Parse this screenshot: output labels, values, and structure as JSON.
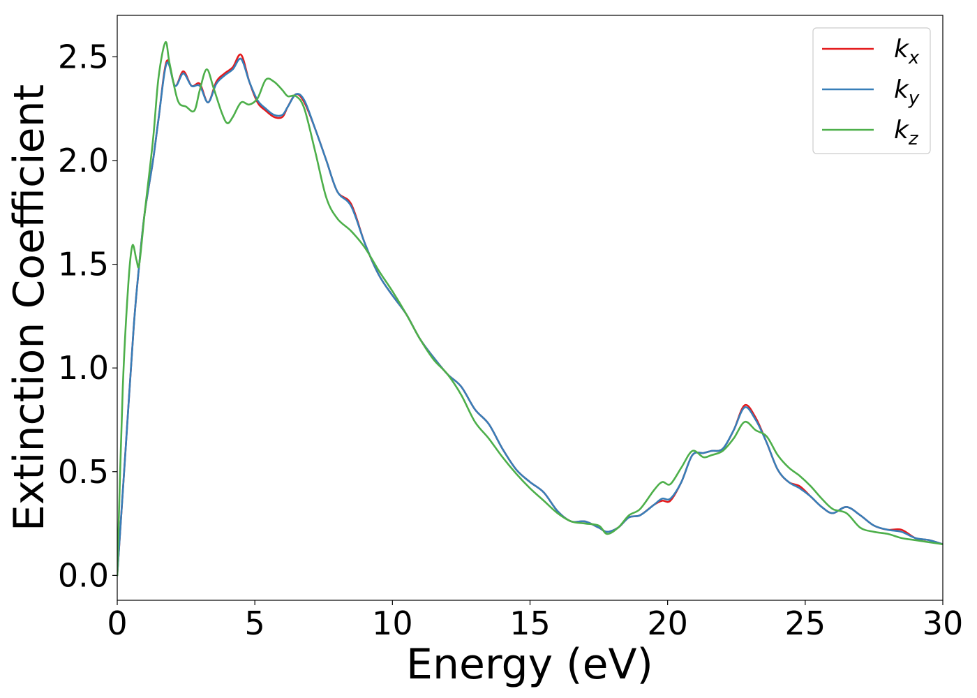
{
  "chart_data": {
    "type": "line",
    "title": "",
    "xlabel": "Energy (eV)",
    "ylabel": "Extinction Coefficient",
    "xlim": [
      0,
      30
    ],
    "ylim": [
      -0.12,
      2.7
    ],
    "xticks": [
      0,
      5,
      10,
      15,
      20,
      25,
      30
    ],
    "xtick_labels": [
      "0",
      "5",
      "10",
      "15",
      "20",
      "25",
      "30"
    ],
    "yticks": [
      0.0,
      0.5,
      1.0,
      1.5,
      2.0,
      2.5
    ],
    "ytick_labels": [
      "0.0",
      "0.5",
      "1.0",
      "1.5",
      "2.0",
      "2.5"
    ],
    "grid": false,
    "legend_position": "top-right",
    "series": [
      {
        "name": "k_x",
        "label_main": "k",
        "label_sub": "x",
        "color": "#e41a1c",
        "x": [
          0,
          0.3,
          0.6,
          0.8,
          1.0,
          1.3,
          1.5,
          1.8,
          2.1,
          2.4,
          2.7,
          3.0,
          3.3,
          3.6,
          3.9,
          4.2,
          4.5,
          4.8,
          5.1,
          5.4,
          5.7,
          6.0,
          6.2,
          6.5,
          6.8,
          7.2,
          7.6,
          8.0,
          8.5,
          9.0,
          9.5,
          10.0,
          10.5,
          11.0,
          11.5,
          12.0,
          12.5,
          13.0,
          13.5,
          14.0,
          14.5,
          15.0,
          15.5,
          16.0,
          16.5,
          17.0,
          17.5,
          17.8,
          18.2,
          18.6,
          19.0,
          19.5,
          19.8,
          20.1,
          20.5,
          20.9,
          21.3,
          21.6,
          22.0,
          22.4,
          22.8,
          23.2,
          23.6,
          24.0,
          24.4,
          24.8,
          25.2,
          25.6,
          26.0,
          26.5,
          27.0,
          27.5,
          28.0,
          28.5,
          29.0,
          29.5,
          30.0
        ],
        "values": [
          0.0,
          0.6,
          1.2,
          1.5,
          1.75,
          2.0,
          2.2,
          2.48,
          2.36,
          2.43,
          2.36,
          2.37,
          2.28,
          2.38,
          2.42,
          2.45,
          2.51,
          2.38,
          2.28,
          2.24,
          2.21,
          2.21,
          2.26,
          2.32,
          2.28,
          2.15,
          2.0,
          1.85,
          1.79,
          1.6,
          1.45,
          1.35,
          1.26,
          1.14,
          1.05,
          0.97,
          0.91,
          0.8,
          0.73,
          0.61,
          0.51,
          0.45,
          0.4,
          0.31,
          0.26,
          0.26,
          0.23,
          0.21,
          0.23,
          0.28,
          0.29,
          0.34,
          0.36,
          0.36,
          0.45,
          0.58,
          0.59,
          0.6,
          0.61,
          0.7,
          0.82,
          0.76,
          0.64,
          0.51,
          0.45,
          0.43,
          0.38,
          0.33,
          0.3,
          0.33,
          0.29,
          0.24,
          0.22,
          0.22,
          0.18,
          0.17,
          0.15
        ]
      },
      {
        "name": "k_y",
        "label_main": "k",
        "label_sub": "y",
        "color": "#377eb8",
        "x": [
          0,
          0.3,
          0.6,
          0.8,
          1.0,
          1.3,
          1.5,
          1.8,
          2.1,
          2.4,
          2.7,
          3.0,
          3.3,
          3.6,
          3.9,
          4.2,
          4.5,
          4.8,
          5.1,
          5.4,
          5.7,
          6.0,
          6.2,
          6.5,
          6.8,
          7.2,
          7.6,
          8.0,
          8.5,
          9.0,
          9.5,
          10.0,
          10.5,
          11.0,
          11.5,
          12.0,
          12.5,
          13.0,
          13.5,
          14.0,
          14.5,
          15.0,
          15.5,
          16.0,
          16.5,
          17.0,
          17.5,
          17.8,
          18.2,
          18.6,
          19.0,
          19.5,
          19.8,
          20.1,
          20.5,
          20.9,
          21.3,
          21.6,
          22.0,
          22.4,
          22.8,
          23.2,
          23.6,
          24.0,
          24.4,
          24.8,
          25.2,
          25.6,
          26.0,
          26.5,
          27.0,
          27.5,
          28.0,
          28.5,
          29.0,
          29.5,
          30.0
        ],
        "values": [
          0.0,
          0.6,
          1.2,
          1.5,
          1.75,
          2.0,
          2.2,
          2.47,
          2.36,
          2.42,
          2.36,
          2.36,
          2.28,
          2.37,
          2.41,
          2.44,
          2.49,
          2.38,
          2.29,
          2.25,
          2.22,
          2.22,
          2.26,
          2.32,
          2.29,
          2.15,
          2.0,
          1.85,
          1.78,
          1.6,
          1.45,
          1.35,
          1.26,
          1.14,
          1.05,
          0.97,
          0.91,
          0.8,
          0.73,
          0.61,
          0.51,
          0.45,
          0.4,
          0.31,
          0.26,
          0.26,
          0.23,
          0.21,
          0.23,
          0.28,
          0.29,
          0.34,
          0.37,
          0.37,
          0.45,
          0.58,
          0.59,
          0.6,
          0.61,
          0.7,
          0.81,
          0.75,
          0.64,
          0.51,
          0.45,
          0.42,
          0.38,
          0.33,
          0.3,
          0.33,
          0.29,
          0.24,
          0.22,
          0.21,
          0.18,
          0.17,
          0.15
        ]
      },
      {
        "name": "k_z",
        "label_main": "k",
        "label_sub": "z",
        "color": "#4daf4a",
        "x": [
          0,
          0.2,
          0.4,
          0.55,
          0.7,
          0.8,
          1.0,
          1.3,
          1.5,
          1.75,
          1.9,
          2.2,
          2.5,
          2.8,
          3.0,
          3.25,
          3.5,
          3.8,
          4.0,
          4.2,
          4.5,
          4.8,
          5.1,
          5.4,
          5.7,
          6.0,
          6.2,
          6.5,
          6.8,
          7.2,
          7.6,
          8.0,
          8.5,
          9.0,
          9.5,
          10.0,
          10.5,
          11.0,
          11.5,
          12.0,
          12.5,
          13.0,
          13.5,
          14.0,
          14.5,
          15.0,
          15.5,
          16.0,
          16.5,
          17.0,
          17.5,
          17.8,
          18.2,
          18.6,
          19.0,
          19.5,
          19.8,
          20.1,
          20.5,
          20.9,
          21.3,
          21.6,
          22.0,
          22.4,
          22.8,
          23.2,
          23.6,
          24.0,
          24.4,
          24.8,
          25.2,
          25.6,
          26.0,
          26.5,
          27.0,
          27.5,
          28.0,
          28.5,
          29.0,
          29.5,
          30.0
        ],
        "values": [
          0.0,
          0.9,
          1.4,
          1.59,
          1.52,
          1.5,
          1.75,
          2.1,
          2.4,
          2.57,
          2.47,
          2.29,
          2.26,
          2.24,
          2.34,
          2.44,
          2.35,
          2.23,
          2.18,
          2.21,
          2.28,
          2.27,
          2.3,
          2.39,
          2.38,
          2.34,
          2.31,
          2.31,
          2.25,
          2.04,
          1.82,
          1.72,
          1.66,
          1.58,
          1.47,
          1.37,
          1.26,
          1.14,
          1.04,
          0.97,
          0.87,
          0.74,
          0.66,
          0.57,
          0.49,
          0.42,
          0.36,
          0.3,
          0.26,
          0.25,
          0.24,
          0.2,
          0.23,
          0.29,
          0.32,
          0.41,
          0.45,
          0.44,
          0.52,
          0.6,
          0.57,
          0.58,
          0.6,
          0.66,
          0.74,
          0.7,
          0.67,
          0.58,
          0.52,
          0.48,
          0.43,
          0.37,
          0.32,
          0.3,
          0.23,
          0.21,
          0.2,
          0.18,
          0.17,
          0.16,
          0.15
        ]
      }
    ]
  }
}
